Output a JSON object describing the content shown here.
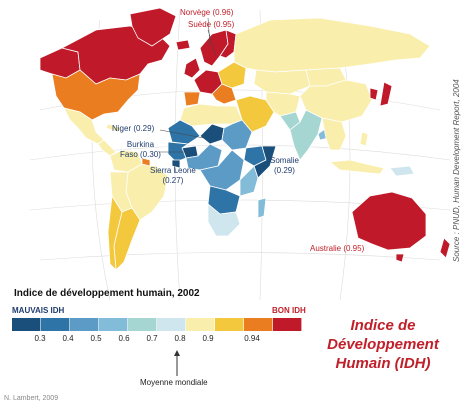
{
  "legend": {
    "title": "Indice de développement humain, 2002",
    "bad_label": "MAUVAIS IDH",
    "good_label": "BON IDH",
    "classes": [
      {
        "color": "#1a4f7c"
      },
      {
        "color": "#2f74a6"
      },
      {
        "color": "#5d9bc7"
      },
      {
        "color": "#82bcd8"
      },
      {
        "color": "#a5d6d2"
      },
      {
        "color": "#cfe6ee"
      },
      {
        "color": "#f9eeab"
      },
      {
        "color": "#f4c83c"
      },
      {
        "color": "#e97d1f"
      },
      {
        "color": "#c0192a"
      }
    ],
    "ticks": [
      "0.3",
      "0.4",
      "0.5",
      "0.6",
      "0.7",
      "0.8",
      "0.9",
      "0.94"
    ],
    "mean_label": "Moyenne mondiale"
  },
  "title_lines": [
    "Indice de",
    "Développement",
    "Humain (IDH)"
  ],
  "source": "Source : PNUD, Human Development Report, 2004",
  "author": "N. Lambert, 2009",
  "labels": {
    "norvege": "Norvège (0.96)",
    "suede": "Suède (0.95)",
    "niger": "Niger (0.29)",
    "burkina_1": "Burkina",
    "burkina_2": "Faso (0.30)",
    "sierra_1": "Sierra Leone",
    "sierra_2": "(0.27)",
    "somalie_1": "Somalie",
    "somalie_2": "(0.29)",
    "australie": "Australie (0.95)"
  },
  "colors": {
    "ocean": "#ffffff",
    "graticule": "#d6d6d6",
    "border": "#ffffff"
  }
}
